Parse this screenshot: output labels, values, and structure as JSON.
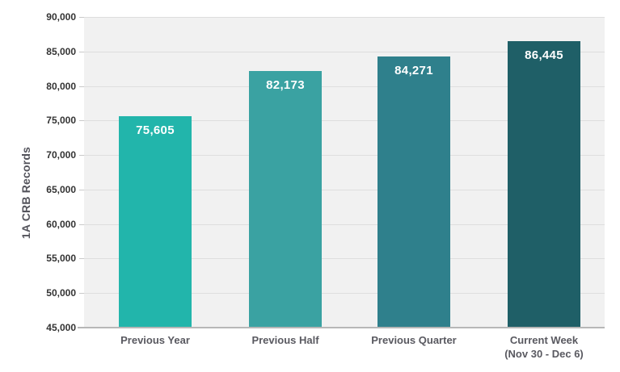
{
  "chart_data": {
    "type": "bar",
    "title": "",
    "xlabel": "",
    "ylabel": "1A CRB Records",
    "categories": [
      "Previous Year",
      "Previous Half",
      "Previous Quarter",
      "Current Week\n(Nov 30 - Dec 6)"
    ],
    "values": [
      75605,
      82173,
      84271,
      86445
    ],
    "value_labels": [
      "75,605",
      "82,173",
      "84,271",
      "86,445"
    ],
    "ylim": [
      45000,
      90000
    ],
    "ytick_step": 5000,
    "tick_labels": [
      "90,000",
      "85,000",
      "80,000",
      "75,000",
      "70,000",
      "65,000",
      "60,000",
      "55,000",
      "50,000",
      "45,000"
    ],
    "grid": "horizontal",
    "legend_position": "none",
    "bar_colors": [
      "#22B5AB",
      "#3AA2A2",
      "#2F808C",
      "#1F5F67"
    ],
    "panel_background": "#F1F1F1",
    "gridline_color": "#DEDEDE",
    "axis_line_color": "#B7B7B7",
    "value_label_color": "#FFFFFF",
    "category_label_color": "#595960",
    "axis_title_color": "#54545C"
  }
}
